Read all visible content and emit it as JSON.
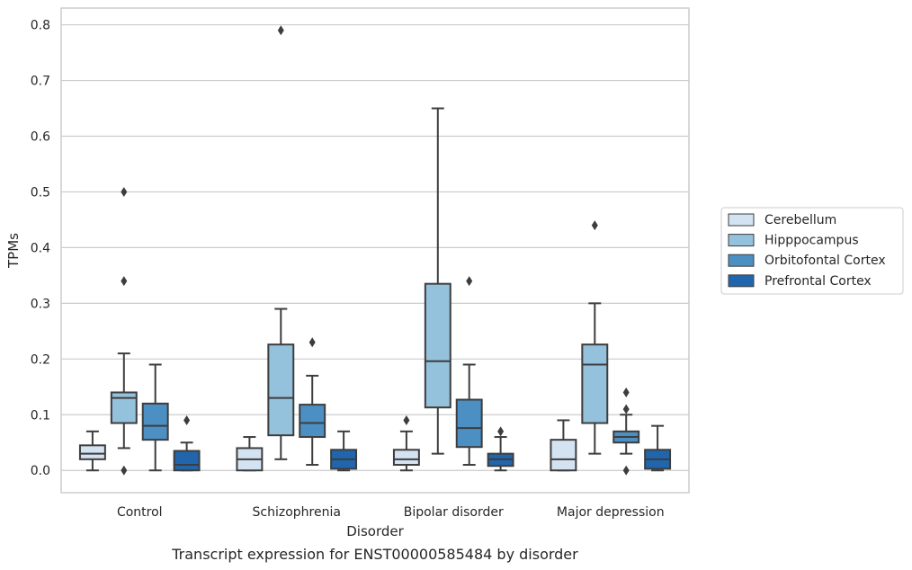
{
  "chart_data": {
    "type": "box",
    "caption": "Transcript expression for ENST00000585484 by disorder",
    "xlabel": "Disorder",
    "ylabel": "TPMs",
    "ylim": [
      -0.04,
      0.83
    ],
    "yticks": [
      "0.0",
      "0.1",
      "0.2",
      "0.3",
      "0.4",
      "0.5",
      "0.6",
      "0.7",
      "0.8"
    ],
    "ytick_values": [
      0.0,
      0.1,
      0.2,
      0.3,
      0.4,
      0.5,
      0.6,
      0.7,
      0.8
    ],
    "grid": "horizontal",
    "legend_position": "right",
    "categories": [
      "Control",
      "Schizophrenia",
      "Bipolar disorder",
      "Major depression"
    ],
    "series": [
      {
        "name": "Cerebellum",
        "color": "#d4e3f2",
        "boxes": [
          {
            "q1": 0.02,
            "median": 0.03,
            "q3": 0.045,
            "whisker_low": 0.0,
            "whisker_high": 0.07,
            "outliers": []
          },
          {
            "q1": 0.0,
            "median": 0.02,
            "q3": 0.04,
            "whisker_low": 0.0,
            "whisker_high": 0.06,
            "outliers": []
          },
          {
            "q1": 0.01,
            "median": 0.02,
            "q3": 0.037,
            "whisker_low": 0.0,
            "whisker_high": 0.07,
            "outliers": [
              0.09
            ]
          },
          {
            "q1": 0.0,
            "median": 0.02,
            "q3": 0.055,
            "whisker_low": 0.0,
            "whisker_high": 0.09,
            "outliers": []
          }
        ]
      },
      {
        "name": "Hipppocampus",
        "color": "#94c1dc",
        "boxes": [
          {
            "q1": 0.085,
            "median": 0.13,
            "q3": 0.14,
            "whisker_low": 0.04,
            "whisker_high": 0.21,
            "outliers": [
              0.5,
              0.34,
              0.0
            ]
          },
          {
            "q1": 0.063,
            "median": 0.13,
            "q3": 0.226,
            "whisker_low": 0.02,
            "whisker_high": 0.29,
            "outliers": [
              0.79
            ]
          },
          {
            "q1": 0.113,
            "median": 0.196,
            "q3": 0.335,
            "whisker_low": 0.03,
            "whisker_high": 0.65,
            "outliers": []
          },
          {
            "q1": 0.085,
            "median": 0.19,
            "q3": 0.226,
            "whisker_low": 0.03,
            "whisker_high": 0.3,
            "outliers": [
              0.44
            ]
          }
        ]
      },
      {
        "name": "Orbitofontal Cortex",
        "color": "#4b8fc3",
        "boxes": [
          {
            "q1": 0.055,
            "median": 0.08,
            "q3": 0.12,
            "whisker_low": 0.0,
            "whisker_high": 0.19,
            "outliers": []
          },
          {
            "q1": 0.06,
            "median": 0.085,
            "q3": 0.118,
            "whisker_low": 0.01,
            "whisker_high": 0.17,
            "outliers": [
              0.23
            ]
          },
          {
            "q1": 0.042,
            "median": 0.076,
            "q3": 0.127,
            "whisker_low": 0.01,
            "whisker_high": 0.19,
            "outliers": [
              0.34
            ]
          },
          {
            "q1": 0.05,
            "median": 0.06,
            "q3": 0.07,
            "whisker_low": 0.03,
            "whisker_high": 0.1,
            "outliers": [
              0.14,
              0.11,
              0.0
            ]
          }
        ]
      },
      {
        "name": "Prefrontal Cortex",
        "color": "#2166ac",
        "boxes": [
          {
            "q1": 0.0,
            "median": 0.01,
            "q3": 0.035,
            "whisker_low": 0.0,
            "whisker_high": 0.05,
            "outliers": [
              0.09
            ]
          },
          {
            "q1": 0.003,
            "median": 0.02,
            "q3": 0.037,
            "whisker_low": 0.0,
            "whisker_high": 0.07,
            "outliers": []
          },
          {
            "q1": 0.008,
            "median": 0.02,
            "q3": 0.03,
            "whisker_low": 0.0,
            "whisker_high": 0.06,
            "outliers": [
              0.07
            ]
          },
          {
            "q1": 0.003,
            "median": 0.02,
            "q3": 0.037,
            "whisker_low": 0.0,
            "whisker_high": 0.08,
            "outliers": []
          }
        ]
      }
    ]
  }
}
